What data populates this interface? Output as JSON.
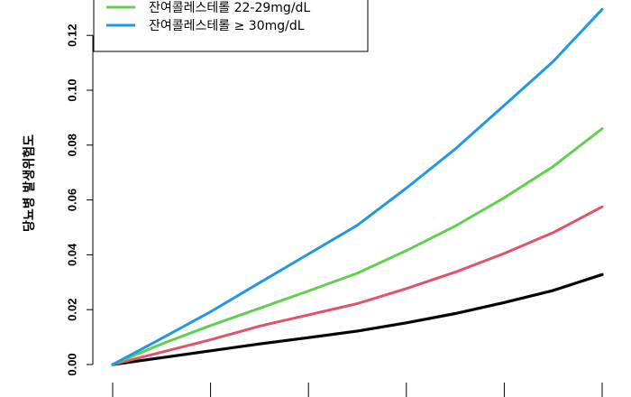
{
  "chart_data": {
    "type": "line",
    "ylabel": "당뇨병 발생위험도",
    "ylim": [
      -0.004,
      0.131
    ],
    "yticks": [
      0.0,
      0.02,
      0.04,
      0.06,
      0.08,
      0.1,
      0.12
    ],
    "ytick_labels": [
      "0.00",
      "0.02",
      "0.04",
      "0.06",
      "0.08",
      "0.10",
      "0.12"
    ],
    "xlim": [
      0,
      5
    ],
    "xticks": [
      0,
      1,
      2,
      3,
      4,
      5
    ],
    "x": [
      0,
      0.5,
      1,
      1.5,
      2,
      2.5,
      3,
      3.5,
      4,
      4.5,
      5
    ],
    "legend": {
      "placement": "top-left",
      "items": [
        {
          "label": "잔여콜레스테롤 22-29mg/dL",
          "color": "#61d04f"
        },
        {
          "label": "잔여콜레스테롤 ≥ 30mg/dL",
          "color": "#2297e6"
        }
      ]
    },
    "series": [
      {
        "color": "#000000",
        "values": [
          0,
          0.0025,
          0.005,
          0.0075,
          0.0098,
          0.0122,
          0.0152,
          0.0186,
          0.0226,
          0.027,
          0.0328
        ]
      },
      {
        "color": "#df536b",
        "values": [
          0,
          0.0045,
          0.009,
          0.014,
          0.0181,
          0.0222,
          0.0277,
          0.0337,
          0.0405,
          0.0481,
          0.0575
        ]
      },
      {
        "color": "#61d04f",
        "values": [
          0,
          0.0075,
          0.0142,
          0.0205,
          0.0268,
          0.0333,
          0.0415,
          0.0505,
          0.0608,
          0.0722,
          0.086
        ]
      },
      {
        "color": "#2297e6",
        "values": [
          0,
          0.0095,
          0.0192,
          0.0298,
          0.0403,
          0.0508,
          0.0643,
          0.0786,
          0.0945,
          0.1105,
          0.1295
        ]
      }
    ]
  }
}
